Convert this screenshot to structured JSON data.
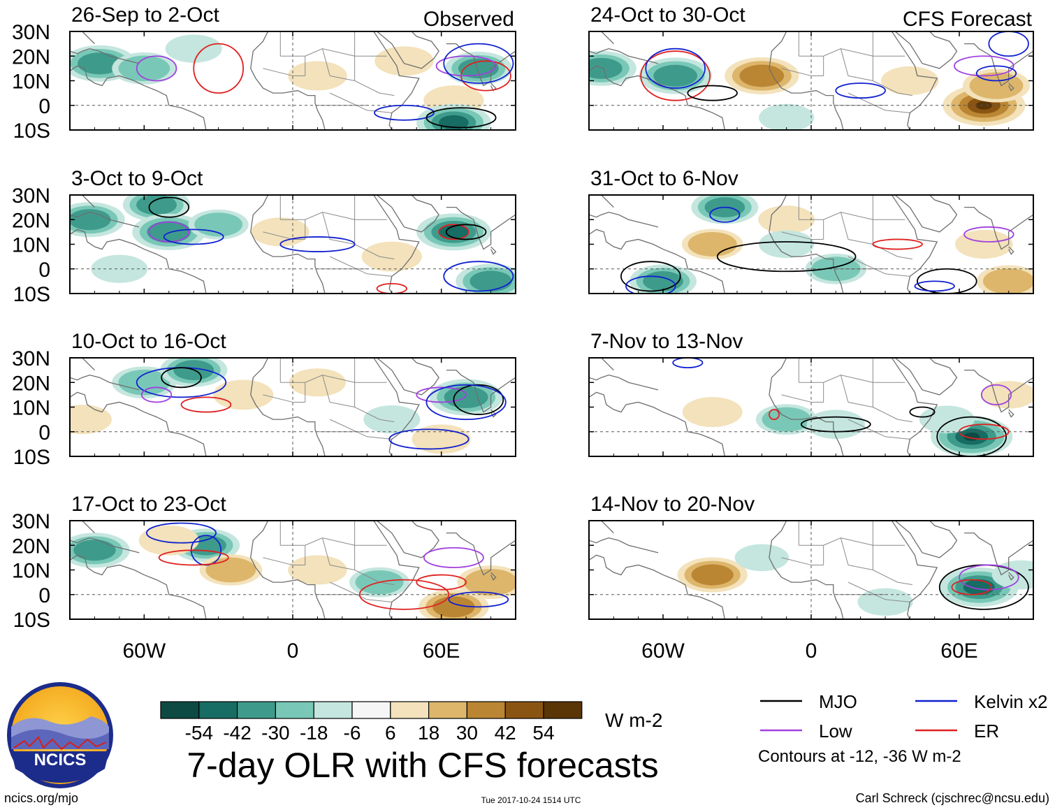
{
  "chart_data": {
    "type": "heatmap",
    "title": "7-day OLR with CFS forecasts",
    "column_headers": {
      "left": "Observed",
      "right": "CFS Forecast"
    },
    "latitude_ticks": [
      "30N",
      "20N",
      "10N",
      "0",
      "10S"
    ],
    "latitude_values": [
      30,
      20,
      10,
      0,
      -10
    ],
    "longitude_ticks": [
      "60W",
      "0",
      "60E"
    ],
    "longitude_values": [
      -60,
      0,
      60
    ],
    "lon_range": [
      -90,
      90
    ],
    "lat_range": [
      -10,
      30
    ],
    "colorbar": {
      "unit": "W m-2",
      "labels": [
        "-54",
        "-42",
        "-30",
        "-18",
        "-6",
        "6",
        "18",
        "30",
        "42",
        "54"
      ],
      "colors": [
        "#0d4a43",
        "#176c63",
        "#3e9b8c",
        "#79c8b7",
        "#c4e6de",
        "#f6f6f6",
        "#f3e2bb",
        "#ddb66b",
        "#bb8633",
        "#8a5512",
        "#5a3506"
      ]
    },
    "legend": {
      "items": [
        {
          "name": "MJO",
          "color": "#000000"
        },
        {
          "name": "Kelvin x2",
          "color": "#1020d0"
        },
        {
          "name": "Low",
          "color": "#a040e0"
        },
        {
          "name": "ER",
          "color": "#e02020"
        }
      ],
      "note": "Contours at -12, -36 W m-2"
    },
    "panels": [
      {
        "column": "left",
        "row": 0,
        "period": "26-Sep to 2-Oct",
        "show_header": true,
        "blobs": [
          {
            "lon": -78,
            "lat": 17,
            "value": -40
          },
          {
            "lon": -60,
            "lat": 15,
            "value": -25
          },
          {
            "lon": -40,
            "lat": 23,
            "value": -12
          },
          {
            "lon": 10,
            "lat": 12,
            "value": 16
          },
          {
            "lon": 45,
            "lat": 18,
            "value": 16
          },
          {
            "lon": 65,
            "lat": 2,
            "value": 18
          },
          {
            "lon": 75,
            "lat": 15,
            "value": -30
          },
          {
            "lon": 65,
            "lat": -7,
            "value": -42
          }
        ],
        "contours": [
          {
            "type": "ER",
            "lon": -30,
            "lat": 15,
            "rx": 10,
            "ry": 10
          },
          {
            "type": "ER",
            "lon": 78,
            "lat": 12,
            "rx": 10,
            "ry": 6
          },
          {
            "type": "Low",
            "lon": -55,
            "lat": 15,
            "rx": 8,
            "ry": 5
          },
          {
            "type": "Low",
            "lon": 70,
            "lat": 16,
            "rx": 12,
            "ry": 4
          },
          {
            "type": "Kelvin x2",
            "lon": 75,
            "lat": 17,
            "rx": 14,
            "ry": 8
          },
          {
            "type": "Kelvin x2",
            "lon": 45,
            "lat": -3,
            "rx": 12,
            "ry": 3
          },
          {
            "type": "MJO",
            "lon": 68,
            "lat": -5,
            "rx": 14,
            "ry": 4
          }
        ]
      },
      {
        "column": "left",
        "row": 1,
        "period": "3-Oct to 9-Oct",
        "show_header": false,
        "blobs": [
          {
            "lon": -82,
            "lat": 20,
            "value": -35
          },
          {
            "lon": -55,
            "lat": 26,
            "value": -30
          },
          {
            "lon": -50,
            "lat": 15,
            "value": -40
          },
          {
            "lon": -30,
            "lat": 18,
            "value": -18
          },
          {
            "lon": -5,
            "lat": 15,
            "value": 14
          },
          {
            "lon": 40,
            "lat": 5,
            "value": 18
          },
          {
            "lon": 65,
            "lat": 15,
            "value": -42
          },
          {
            "lon": 80,
            "lat": -5,
            "value": -35
          },
          {
            "lon": -70,
            "lat": 0,
            "value": -12
          }
        ],
        "contours": [
          {
            "type": "MJO",
            "lon": -50,
            "lat": 25,
            "rx": 8,
            "ry": 4
          },
          {
            "type": "ER",
            "lon": 65,
            "lat": 15,
            "rx": 6,
            "ry": 3
          },
          {
            "type": "MJO",
            "lon": 70,
            "lat": 15,
            "rx": 8,
            "ry": 3
          },
          {
            "type": "Low",
            "lon": -50,
            "lat": 15,
            "rx": 8,
            "ry": 4
          },
          {
            "type": "Kelvin x2",
            "lon": -40,
            "lat": 13,
            "rx": 12,
            "ry": 3
          },
          {
            "type": "Kelvin x2",
            "lon": 10,
            "lat": 10,
            "rx": 15,
            "ry": 3
          },
          {
            "type": "Kelvin x2",
            "lon": 75,
            "lat": -3,
            "rx": 14,
            "ry": 6
          },
          {
            "type": "ER",
            "lon": 40,
            "lat": -8,
            "rx": 6,
            "ry": 2
          }
        ]
      },
      {
        "column": "left",
        "row": 2,
        "period": "10-Oct to 16-Oct",
        "show_header": false,
        "blobs": [
          {
            "lon": -60,
            "lat": 20,
            "value": -25
          },
          {
            "lon": -40,
            "lat": 25,
            "value": -30
          },
          {
            "lon": -20,
            "lat": 15,
            "value": 18
          },
          {
            "lon": -85,
            "lat": 5,
            "value": 16
          },
          {
            "lon": 10,
            "lat": 20,
            "value": 12
          },
          {
            "lon": 40,
            "lat": 5,
            "value": -12
          },
          {
            "lon": 70,
            "lat": 14,
            "value": -40
          },
          {
            "lon": 60,
            "lat": -3,
            "value": 16
          }
        ],
        "contours": [
          {
            "type": "Kelvin x2",
            "lon": -45,
            "lat": 20,
            "rx": 18,
            "ry": 6
          },
          {
            "type": "MJO",
            "lon": -45,
            "lat": 22,
            "rx": 8,
            "ry": 4
          },
          {
            "type": "ER",
            "lon": -35,
            "lat": 11,
            "rx": 10,
            "ry": 3
          },
          {
            "type": "Low",
            "lon": -55,
            "lat": 15,
            "rx": 6,
            "ry": 3
          },
          {
            "type": "Low",
            "lon": 60,
            "lat": 15,
            "rx": 10,
            "ry": 3
          },
          {
            "type": "MJO",
            "lon": 75,
            "lat": 13,
            "rx": 10,
            "ry": 6
          },
          {
            "type": "Kelvin x2",
            "lon": 70,
            "lat": 12,
            "rx": 16,
            "ry": 7
          },
          {
            "type": "Kelvin x2",
            "lon": 55,
            "lat": -3,
            "rx": 16,
            "ry": 4
          }
        ]
      },
      {
        "column": "left",
        "row": 3,
        "period": "17-Oct to 23-Oct",
        "show_header": false,
        "blobs": [
          {
            "lon": -80,
            "lat": 18,
            "value": -35
          },
          {
            "lon": -35,
            "lat": 20,
            "value": -30
          },
          {
            "lon": -50,
            "lat": 22,
            "value": 18
          },
          {
            "lon": -25,
            "lat": 10,
            "value": 22
          },
          {
            "lon": 10,
            "lat": 10,
            "value": 16
          },
          {
            "lon": 35,
            "lat": 5,
            "value": -18
          },
          {
            "lon": 65,
            "lat": -5,
            "value": 35
          },
          {
            "lon": 80,
            "lat": 5,
            "value": 30
          }
        ],
        "contours": [
          {
            "type": "Kelvin x2",
            "lon": -45,
            "lat": 25,
            "rx": 14,
            "ry": 4
          },
          {
            "type": "Kelvin x2",
            "lon": -35,
            "lat": 18,
            "rx": 6,
            "ry": 6
          },
          {
            "type": "ER",
            "lon": -40,
            "lat": 15,
            "rx": 14,
            "ry": 3
          },
          {
            "type": "Low",
            "lon": 65,
            "lat": 15,
            "rx": 12,
            "ry": 4
          },
          {
            "type": "ER",
            "lon": 60,
            "lat": 5,
            "rx": 10,
            "ry": 3
          },
          {
            "type": "ER",
            "lon": 45,
            "lat": 0,
            "rx": 18,
            "ry": 6
          },
          {
            "type": "Kelvin x2",
            "lon": 75,
            "lat": -2,
            "rx": 12,
            "ry": 3
          }
        ]
      },
      {
        "column": "right",
        "row": 0,
        "period": "24-Oct to 30-Oct",
        "show_header": true,
        "blobs": [
          {
            "lon": -85,
            "lat": 15,
            "value": -35
          },
          {
            "lon": -55,
            "lat": 12,
            "value": -40
          },
          {
            "lon": -20,
            "lat": 12,
            "value": 42
          },
          {
            "lon": 70,
            "lat": 0,
            "value": 56
          },
          {
            "lon": 75,
            "lat": 8,
            "value": 30
          },
          {
            "lon": 40,
            "lat": 10,
            "value": 14
          },
          {
            "lon": -10,
            "lat": -5,
            "value": -10
          }
        ],
        "contours": [
          {
            "type": "ER",
            "lon": -55,
            "lat": 12,
            "rx": 14,
            "ry": 10
          },
          {
            "type": "Kelvin x2",
            "lon": -55,
            "lat": 15,
            "rx": 12,
            "ry": 8
          },
          {
            "type": "MJO",
            "lon": -40,
            "lat": 5,
            "rx": 10,
            "ry": 3
          },
          {
            "type": "Low",
            "lon": 70,
            "lat": 16,
            "rx": 12,
            "ry": 4
          },
          {
            "type": "Kelvin x2",
            "lon": 75,
            "lat": 13,
            "rx": 8,
            "ry": 3
          },
          {
            "type": "Kelvin x2",
            "lon": 80,
            "lat": 25,
            "rx": 8,
            "ry": 5
          },
          {
            "type": "Kelvin x2",
            "lon": 20,
            "lat": 6,
            "rx": 10,
            "ry": 3
          }
        ]
      },
      {
        "column": "right",
        "row": 1,
        "period": "31-Oct to 6-Nov",
        "show_header": false,
        "blobs": [
          {
            "lon": -35,
            "lat": 25,
            "value": -30
          },
          {
            "lon": -40,
            "lat": 10,
            "value": 20
          },
          {
            "lon": -10,
            "lat": 20,
            "value": 12
          },
          {
            "lon": -60,
            "lat": -5,
            "value": -30
          },
          {
            "lon": 10,
            "lat": 0,
            "value": -20
          },
          {
            "lon": 80,
            "lat": -5,
            "value": 25
          },
          {
            "lon": 70,
            "lat": 10,
            "value": 14
          },
          {
            "lon": -10,
            "lat": 10,
            "value": -10
          }
        ],
        "contours": [
          {
            "type": "MJO",
            "lon": -10,
            "lat": 5,
            "rx": 28,
            "ry": 6
          },
          {
            "type": "MJO",
            "lon": -65,
            "lat": -3,
            "rx": 12,
            "ry": 6
          },
          {
            "type": "MJO",
            "lon": 55,
            "lat": -5,
            "rx": 12,
            "ry": 5
          },
          {
            "type": "Kelvin x2",
            "lon": -65,
            "lat": -7,
            "rx": 10,
            "ry": 4
          },
          {
            "type": "Kelvin x2",
            "lon": 50,
            "lat": -7,
            "rx": 8,
            "ry": 2
          },
          {
            "type": "ER",
            "lon": 35,
            "lat": 10,
            "rx": 10,
            "ry": 2
          },
          {
            "type": "Low",
            "lon": 72,
            "lat": 14,
            "rx": 10,
            "ry": 3
          },
          {
            "type": "Kelvin x2",
            "lon": -35,
            "lat": 22,
            "rx": 6,
            "ry": 3
          }
        ]
      },
      {
        "column": "right",
        "row": 2,
        "period": "7-Nov to 13-Nov",
        "show_header": false,
        "blobs": [
          {
            "lon": -40,
            "lat": 8,
            "value": 18
          },
          {
            "lon": -10,
            "lat": 5,
            "value": -20
          },
          {
            "lon": 10,
            "lat": 3,
            "value": -15
          },
          {
            "lon": 65,
            "lat": -2,
            "value": -55
          },
          {
            "lon": 55,
            "lat": 5,
            "value": -10
          },
          {
            "lon": 80,
            "lat": 15,
            "value": 10
          }
        ],
        "contours": [
          {
            "type": "Kelvin x2",
            "lon": -50,
            "lat": 28,
            "rx": 6,
            "ry": 2
          },
          {
            "type": "ER",
            "lon": -15,
            "lat": 7,
            "rx": 2,
            "ry": 2
          },
          {
            "type": "MJO",
            "lon": 10,
            "lat": 3,
            "rx": 14,
            "ry": 3
          },
          {
            "type": "MJO",
            "lon": 65,
            "lat": -2,
            "rx": 14,
            "ry": 8
          },
          {
            "type": "ER",
            "lon": 70,
            "lat": 0,
            "rx": 10,
            "ry": 3
          },
          {
            "type": "Low",
            "lon": 75,
            "lat": 15,
            "rx": 6,
            "ry": 4
          },
          {
            "type": "MJO",
            "lon": 45,
            "lat": 8,
            "rx": 5,
            "ry": 2
          }
        ]
      },
      {
        "column": "right",
        "row": 3,
        "period": "14-Nov to 20-Nov",
        "show_header": false,
        "blobs": [
          {
            "lon": -40,
            "lat": 8,
            "value": 35
          },
          {
            "lon": 68,
            "lat": 3,
            "value": -50
          },
          {
            "lon": 85,
            "lat": 8,
            "value": -15
          },
          {
            "lon": -20,
            "lat": 15,
            "value": -8
          },
          {
            "lon": 30,
            "lat": -3,
            "value": -10
          }
        ],
        "contours": [
          {
            "type": "MJO",
            "lon": 70,
            "lat": 3,
            "rx": 18,
            "ry": 9
          },
          {
            "type": "Low",
            "lon": 72,
            "lat": 7,
            "rx": 12,
            "ry": 5
          },
          {
            "type": "ER",
            "lon": 65,
            "lat": 3,
            "rx": 8,
            "ry": 3
          }
        ]
      }
    ]
  },
  "logo": {
    "label": "NCICS"
  },
  "footer": {
    "url": "ncics.org/mjo",
    "timestamp": "Tue 2017-10-24 1514 UTC",
    "credit": "Carl Schreck (cjschrec@ncsu.edu)"
  }
}
